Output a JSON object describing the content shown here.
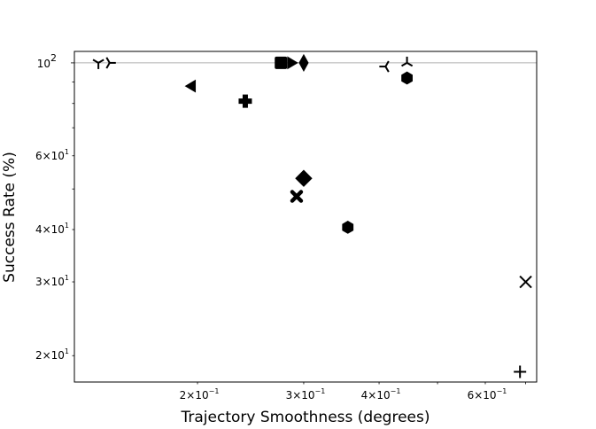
{
  "chart_data": {
    "type": "scatter",
    "title": "",
    "xlabel": "Trajectory Smoothness (degrees)",
    "ylabel": "Success Rate (%)",
    "xscale": "log",
    "yscale": "log",
    "xlim": [
      0.125,
      0.73
    ],
    "ylim": [
      17.3,
      106.5
    ],
    "grid": "off",
    "reference_line_y": 100,
    "x_tick_labels": [
      {
        "value": 0.2,
        "base": "2",
        "exp": "−1"
      },
      {
        "value": 0.3,
        "base": "3",
        "exp": "−1"
      },
      {
        "value": 0.4,
        "base": "4",
        "exp": "−1"
      },
      {
        "value": 0.6,
        "base": "6",
        "exp": "−1"
      }
    ],
    "y_tick_labels": [
      {
        "value": 100,
        "base": "10",
        "exp": "2",
        "major": true
      },
      {
        "value": 60,
        "base": "6",
        "exp": "1",
        "major": false
      },
      {
        "value": 40,
        "base": "4",
        "exp": "1",
        "major": false
      },
      {
        "value": 30,
        "base": "3",
        "exp": "1",
        "major": false
      },
      {
        "value": 20,
        "base": "2",
        "exp": "1",
        "major": false
      }
    ],
    "points": [
      {
        "x": 0.137,
        "y": 100,
        "marker": "tri_down"
      },
      {
        "x": 0.143,
        "y": 100,
        "marker": "tri_right"
      },
      {
        "x": 0.195,
        "y": 88,
        "marker": "triangle_left"
      },
      {
        "x": 0.24,
        "y": 81,
        "marker": "plus_filled"
      },
      {
        "x": 0.275,
        "y": 100,
        "marker": "square"
      },
      {
        "x": 0.287,
        "y": 100,
        "marker": "triangle_right"
      },
      {
        "x": 0.3,
        "y": 100,
        "marker": "thin_diamond"
      },
      {
        "x": 0.3,
        "y": 53,
        "marker": "diamond"
      },
      {
        "x": 0.292,
        "y": 48,
        "marker": "x_filled"
      },
      {
        "x": 0.355,
        "y": 40.5,
        "marker": "hexagon"
      },
      {
        "x": 0.41,
        "y": 98,
        "marker": "tri_left"
      },
      {
        "x": 0.445,
        "y": 100,
        "marker": "tri_up"
      },
      {
        "x": 0.445,
        "y": 92,
        "marker": "hexagon"
      },
      {
        "x": 0.7,
        "y": 30,
        "marker": "x"
      },
      {
        "x": 0.685,
        "y": 18.3,
        "marker": "plus"
      }
    ]
  }
}
